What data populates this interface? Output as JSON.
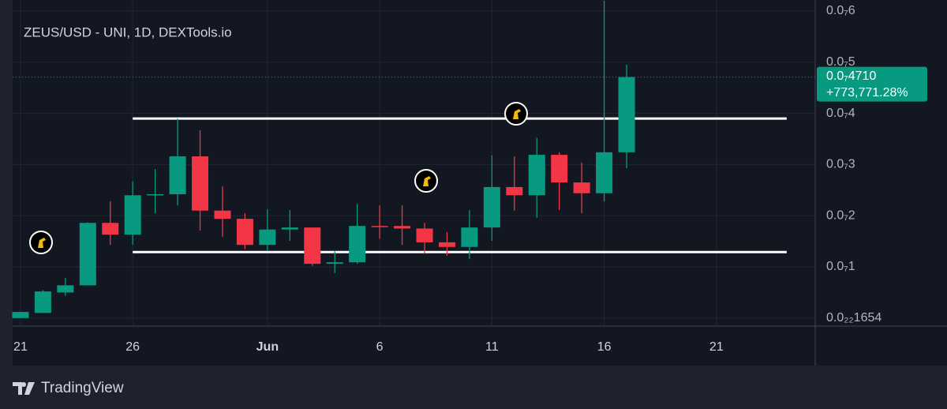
{
  "chart_data": {
    "type": "candlestick",
    "title": "ZEUS/USD - UNI, 1D, DEXTools.io",
    "candles": {
      "x": [
        0,
        1,
        2,
        3,
        4,
        5,
        6,
        7,
        8,
        9,
        10,
        11,
        12,
        13,
        14,
        15,
        16,
        17,
        18,
        19,
        20,
        21,
        22,
        23,
        24,
        25,
        26,
        27
      ],
      "open": [
        0,
        1e-09,
        5e-09,
        6.4e-09,
        1.86e-08,
        1.63e-08,
        2.4e-08,
        2.42e-08,
        3.16e-08,
        2.1e-08,
        1.94e-08,
        1.43e-08,
        1.73e-08,
        1.77e-08,
        1.06e-08,
        1.09e-08,
        1.8e-08,
        1.8e-08,
        1.75e-08,
        1.48e-08,
        1.39e-08,
        1.77e-08,
        2.56e-08,
        2.4e-08,
        3.19e-08,
        2.65e-08,
        2.44e-08,
        3.24e-08
      ],
      "high": [
        1.2e-09,
        5.5e-09,
        7.8e-09,
        1.87e-08,
        2.28e-08,
        2.67e-08,
        2.91e-08,
        3.9e-08,
        3.67e-08,
        2.57e-08,
        2.05e-08,
        2.13e-08,
        2.11e-08,
        1.77e-08,
        1.31e-08,
        2.23e-08,
        2.2e-08,
        2.2e-08,
        1.86e-08,
        1.68e-08,
        2.11e-08,
        3.18e-08,
        3.16e-08,
        3.52e-08,
        3.24e-08,
        3.04e-08,
        6.2e-08,
        4.95e-08
      ],
      "low": [
        0,
        1e-09,
        4.3e-09,
        6.4e-09,
        1.43e-08,
        1.43e-08,
        2.05e-08,
        2.2e-08,
        1.71e-08,
        1.59e-08,
        1.35e-08,
        1.31e-08,
        1.51e-08,
        1.02e-08,
        8.8e-09,
        1.06e-08,
        1.55e-08,
        1.43e-08,
        1.26e-08,
        1.22e-08,
        1.15e-08,
        1.51e-08,
        2.1e-08,
        1.96e-08,
        2.11e-08,
        2.05e-08,
        2.28e-08,
        2.93e-08
      ],
      "close": [
        1.2e-09,
        5.2e-09,
        6.4e-09,
        1.86e-08,
        1.63e-08,
        2.4e-08,
        2.42e-08,
        3.16e-08,
        2.1e-08,
        1.94e-08,
        1.43e-08,
        1.73e-08,
        1.77e-08,
        1.06e-08,
        1.09e-08,
        1.8e-08,
        1.79e-08,
        1.75e-08,
        1.48e-08,
        1.39e-08,
        1.77e-08,
        2.56e-08,
        2.4e-08,
        3.19e-08,
        2.65e-08,
        2.44e-08,
        3.24e-08,
        4.71e-08
      ]
    },
    "up_color": "#089981",
    "down_color": "#f23645",
    "xlim": [
      -0.35,
      35.4
    ],
    "xticks": [
      {
        "value": 0,
        "label": "21"
      },
      {
        "value": 5,
        "label": "26"
      },
      {
        "value": 11,
        "label": "Jun"
      },
      {
        "value": 16,
        "label": "6"
      },
      {
        "value": 21,
        "label": "11"
      },
      {
        "value": 26,
        "label": "16"
      },
      {
        "value": 31,
        "label": "21"
      }
    ],
    "ylim": [
      -1.57e-09,
      6.216e-08
    ],
    "yticks": [
      {
        "value": 1.654e-23,
        "label": "0.0₂₂1654"
      },
      {
        "value": 1e-08,
        "label": "0.0₇1"
      },
      {
        "value": 2e-08,
        "label": "0.0₇2"
      },
      {
        "value": 3e-08,
        "label": "0.0₇3"
      },
      {
        "value": 4e-08,
        "label": "0.0₇4"
      },
      {
        "value": 5e-08,
        "label": "0.0₇5"
      },
      {
        "value": 6e-08,
        "label": "0.0₇6"
      }
    ],
    "grid": true,
    "levels": [
      {
        "value": 3.9e-08,
        "x": [
          5,
          34.13
        ]
      },
      {
        "value": 1.29e-08,
        "x": [
          5,
          34.13
        ]
      }
    ],
    "last_price": {
      "value": 4.71e-08,
      "label": "0.0₇4710"
    },
    "change_label": "+773,771.28%"
  },
  "footer": {
    "brand": "TradingView"
  }
}
